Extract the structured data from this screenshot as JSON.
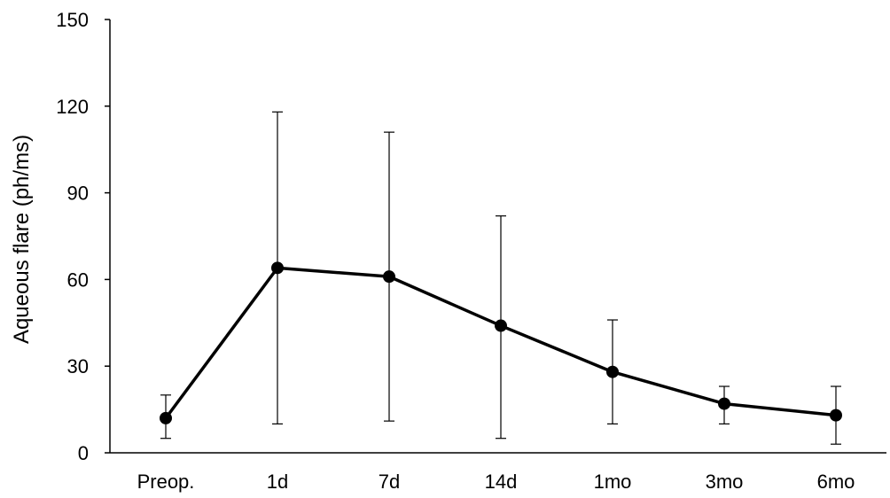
{
  "chart_data": {
    "type": "line",
    "title": "",
    "xlabel": "",
    "ylabel": "Aqueous flare (ph/ms)",
    "categories": [
      "Preop.",
      "1d",
      "7d",
      "14d",
      "1mo",
      "3mo",
      "6mo"
    ],
    "series": [
      {
        "values": [
          12,
          64,
          61,
          44,
          28,
          17,
          13
        ],
        "error_upper": [
          20,
          118,
          111,
          82,
          46,
          23,
          23
        ],
        "error_lower": [
          5,
          10,
          11,
          5,
          10,
          10,
          3
        ]
      }
    ],
    "yticks": [
      "0",
      "30",
      "60",
      "90",
      "120",
      "150"
    ],
    "ylim": [
      0,
      150
    ],
    "grid": false,
    "legend": "none",
    "line_color": "#000000"
  }
}
